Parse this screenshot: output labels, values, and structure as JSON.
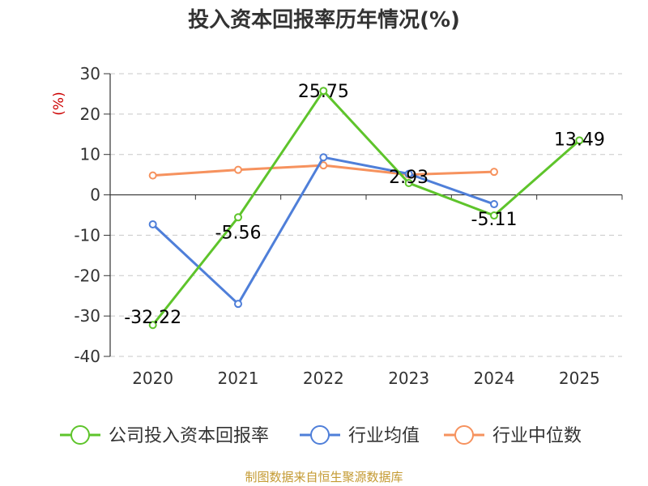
{
  "title": "投入资本回报率历年情况(%)",
  "source": "制图数据来自恒生聚源数据库",
  "chart_data": {
    "type": "line",
    "title": "投入资本回报率历年情况(%)",
    "ylabel": "(%)",
    "categories": [
      "2020",
      "2021",
      "2022",
      "2023",
      "2024",
      "2025"
    ],
    "ylim": [
      -40,
      30
    ],
    "yticks": [
      30,
      20,
      10,
      0,
      -10,
      -20,
      -30,
      -40
    ],
    "grid": true,
    "legend_position": "bottom",
    "series": [
      {
        "name": "公司投入资本回报率",
        "color": "#5ec42b",
        "values": [
          -32.22,
          -5.56,
          25.75,
          2.93,
          -5.11,
          13.49
        ],
        "labels": [
          "-32.22",
          "-5.56",
          "25.75",
          "2.93",
          "-5.11",
          "13.49"
        ]
      },
      {
        "name": "行业均值",
        "color": "#4f7fd9",
        "values": [
          -7.3,
          -27.0,
          9.3,
          5.2,
          -2.3,
          null
        ]
      },
      {
        "name": "行业中位数",
        "color": "#f6925e",
        "values": [
          4.8,
          6.2,
          7.3,
          5.0,
          5.7,
          null
        ]
      }
    ]
  }
}
